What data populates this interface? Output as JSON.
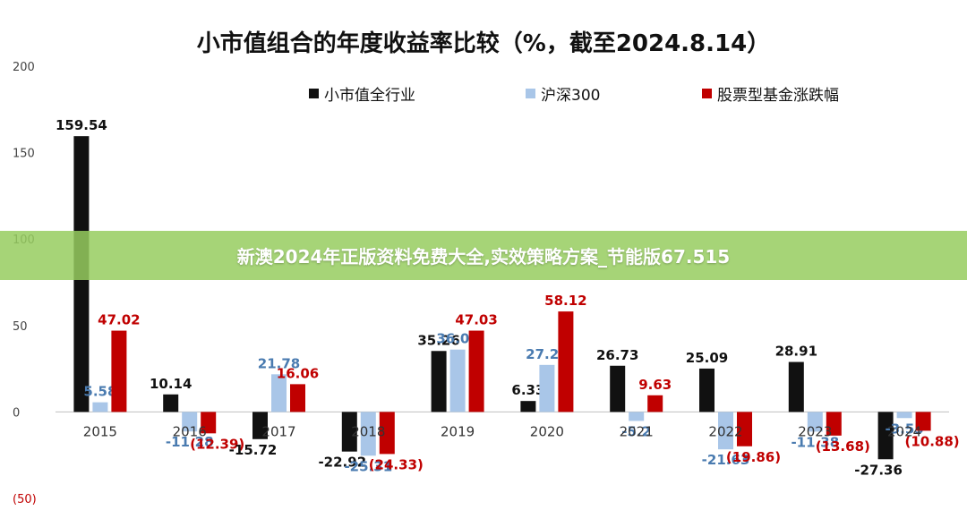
{
  "banner_text": "新澳2024年正版资料免费大全,实效策略方案_节能版67.515",
  "chart_data": {
    "type": "bar",
    "title": "小市值组合的年度收益率比较（%，截至2024.8.14）",
    "categories": [
      "2015",
      "2016",
      "2017",
      "2018",
      "2019",
      "2020",
      "2021",
      "2022",
      "2023",
      "2024"
    ],
    "series": [
      {
        "name": "小市值全行业",
        "color": "#111111",
        "values": [
          159.54,
          10.14,
          -15.72,
          -22.92,
          35.26,
          6.33,
          26.73,
          25.09,
          28.91,
          -27.36
        ],
        "labels": [
          "159.54",
          "10.14",
          "-15.72",
          "-22.92",
          "35.26",
          "6.33",
          "26.73",
          "25.09",
          "28.91",
          "-27.36"
        ],
        "label_color": "#111111"
      },
      {
        "name": "沪深300",
        "color": "#a9c6e8",
        "values": [
          5.58,
          -11.28,
          21.78,
          -25.31,
          36.07,
          27.21,
          -5.2,
          -21.63,
          -11.38,
          -3.55
        ],
        "labels": [
          "5.58",
          "-11.28",
          "21.78",
          "-25.31",
          "36.07",
          "27.21",
          "-5.2",
          "-21.63",
          "-11.38",
          "-3.55"
        ],
        "label_color": "#4a7bb0"
      },
      {
        "name": "股票型基金涨跌幅",
        "color": "#c00000",
        "values": [
          47.02,
          -12.39,
          16.06,
          -24.33,
          47.03,
          58.12,
          9.63,
          -19.86,
          -13.68,
          -10.88
        ],
        "labels": [
          "47.02",
          "(12.39)",
          "16.06",
          "(24.33)",
          "47.03",
          "58.12",
          "9.63",
          "(19.86)",
          "(13.68)",
          "(10.88)"
        ],
        "label_color": "#c00000"
      }
    ],
    "y_ticks": [
      {
        "value": 200,
        "label": "200"
      },
      {
        "value": 150,
        "label": "150"
      },
      {
        "value": 100,
        "label": "100"
      },
      {
        "value": 50,
        "label": "50"
      },
      {
        "value": 0,
        "label": "0"
      },
      {
        "value": -50,
        "label": "(50)"
      }
    ],
    "ylim": [
      -50,
      200
    ],
    "legend_position": "top",
    "grid": false
  }
}
